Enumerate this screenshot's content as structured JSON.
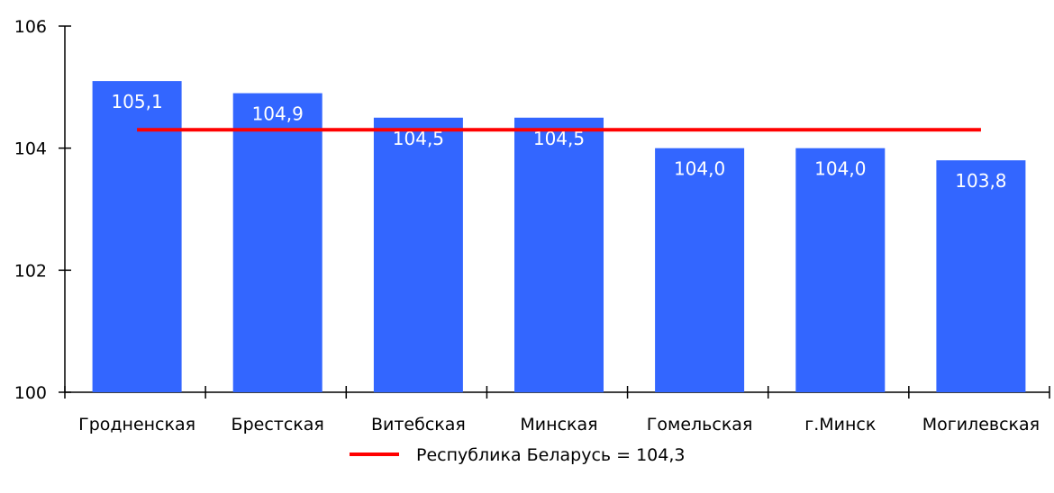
{
  "chart_data": {
    "type": "bar",
    "categories": [
      "Гродненская",
      "Брестская",
      "Витебская",
      "Минская",
      "Гомельская",
      "г.Минск",
      "Могилевская"
    ],
    "values": [
      105.1,
      104.9,
      104.5,
      104.5,
      104.0,
      104.0,
      103.8
    ],
    "value_labels": [
      "105,1",
      "104,9",
      "104,5",
      "104,5",
      "104,0",
      "104,0",
      "103,8"
    ],
    "ylim": [
      100,
      106
    ],
    "yticks": [
      100,
      102,
      104,
      106
    ],
    "ytick_labels": [
      "100",
      "102",
      "104",
      "106"
    ],
    "reference_line": {
      "value": 104.3,
      "label": "Республика Беларусь = 104,3",
      "color": "#ff0000"
    },
    "bar_color": "#3366ff",
    "grid": false,
    "legend_position": "bottom-center"
  }
}
